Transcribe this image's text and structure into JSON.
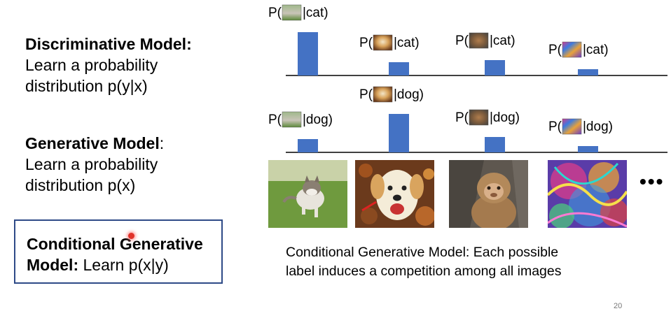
{
  "left_panel": {
    "discriminative": {
      "title": "Discriminative Model:",
      "line1": "Learn a probability",
      "line2": "distribution p(y|x)"
    },
    "generative": {
      "title": "Generative Model",
      "colon": ":",
      "line1": "Learn a probability",
      "line2": "distribution p(x)"
    },
    "conditional": {
      "title_line1": "Conditional Generative",
      "title_line2": "Model:",
      "rest": " Learn p(x|y)"
    }
  },
  "label_parts": {
    "open": "P(",
    "close_cat": "|cat)",
    "close_dog": "|dog)"
  },
  "chart_data": [
    {
      "type": "bar",
      "categories": [
        "cat-image",
        "dog-image",
        "monkey-image",
        "abstract-image"
      ],
      "tick_labels": [
        "P(|cat)",
        "P(|cat)",
        "P(|cat)",
        "P(|cat)"
      ],
      "values": [
        62,
        19,
        22,
        9
      ],
      "ylim": [
        0,
        70
      ]
    },
    {
      "type": "bar",
      "categories": [
        "cat-image",
        "dog-image",
        "monkey-image",
        "abstract-image"
      ],
      "tick_labels": [
        "P(|dog)",
        "P(|dog)",
        "P(|dog)",
        "P(|dog)"
      ],
      "values": [
        19,
        55,
        22,
        9
      ],
      "ylim": [
        0,
        70
      ]
    }
  ],
  "colors": {
    "bar": "#4472c4",
    "box_border": "#2e4a87",
    "laser": "#e0322a"
  },
  "images": [
    {
      "name": "kitten-photo"
    },
    {
      "name": "dog-photo"
    },
    {
      "name": "monkey-photo"
    },
    {
      "name": "abstract-photo"
    }
  ],
  "ellipsis": "•••",
  "caption": {
    "line1": "Conditional Generative Model: Each possible",
    "line2": "label induces a competition among all images"
  },
  "page_number": "20"
}
